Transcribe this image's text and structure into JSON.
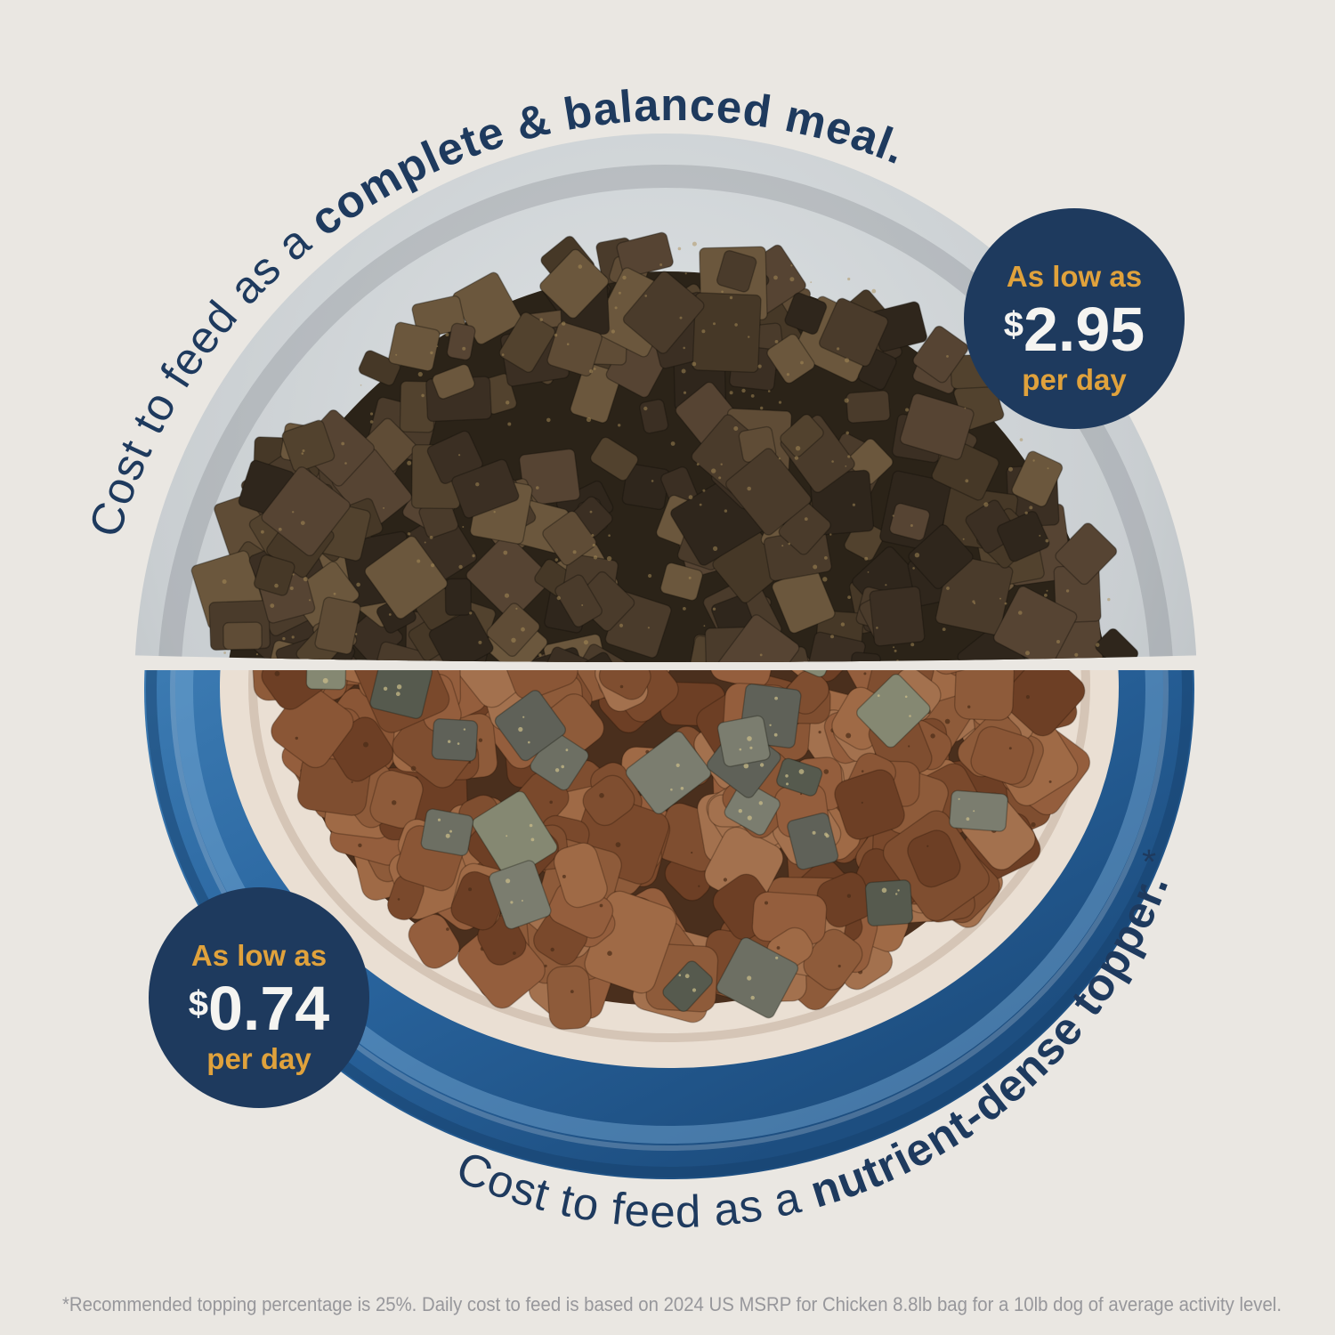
{
  "arc_top": {
    "prefix": "Cost to feed as a ",
    "emphasis": "complete & balanced meal."
  },
  "arc_bottom": {
    "prefix": "Cost to feed as a ",
    "emphasis": "nutrient-dense topper.",
    "footnote_marker": " *"
  },
  "badge_top": {
    "label": "As low as",
    "currency": "$",
    "price": "2.95",
    "sublabel": "per day"
  },
  "badge_bottom": {
    "label": "As low as",
    "currency": "$",
    "price": "0.74",
    "sublabel": "per day"
  },
  "footnote": "*Recommended topping percentage is 25%. Daily cost to feed is based on 2024 US MSRP for Chicken 8.8lb bag for a 10lb dog of average activity level.",
  "colors": {
    "background": "#EAE7E2",
    "navy": "#1E3A5E",
    "gold": "#E0A23C",
    "price_white": "#F5F4F1",
    "footnote_gray": "#97979B",
    "bowl_blue": "#2E6DA6",
    "bowl_gray": "#C3C8CB",
    "bowl_inner_cream": "#EADFD3"
  }
}
